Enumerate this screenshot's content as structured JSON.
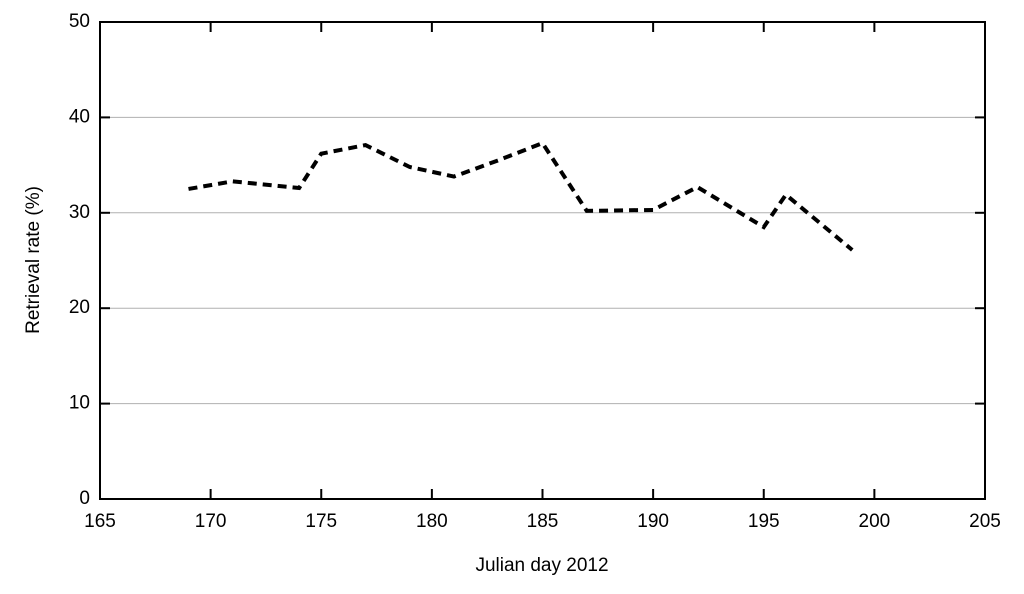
{
  "chart_data": {
    "type": "line",
    "x_label": "Julian day 2012",
    "y_label": "Retrieval rate (%)",
    "x": [
      169,
      171,
      174,
      175,
      177,
      179,
      181,
      183,
      185,
      187,
      190,
      192,
      195,
      196,
      199
    ],
    "series": [
      {
        "color": "#000000",
        "values": [
          32.5,
          33.3,
          32.6,
          36.2,
          37.1,
          34.8,
          33.8,
          35.5,
          37.3,
          30.2,
          30.3,
          32.7,
          28.5,
          31.9,
          26.1
        ]
      }
    ],
    "xlim": [
      165,
      205
    ],
    "xticks": [
      165,
      170,
      175,
      180,
      185,
      190,
      195,
      200,
      205
    ],
    "ylim": [
      0,
      50
    ],
    "yticks": [
      0,
      10,
      20,
      30,
      40,
      50
    ],
    "grid": true
  }
}
